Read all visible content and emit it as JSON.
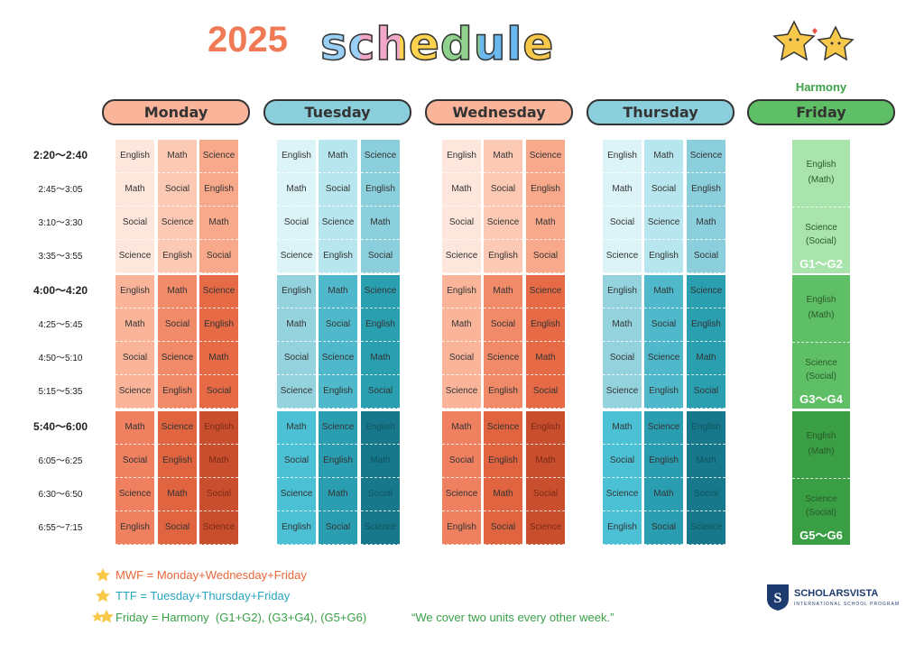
{
  "header": {
    "year": "2025",
    "title": "schedule",
    "subtitle": "Harmony"
  },
  "days": [
    "Monday",
    "Tuesday",
    "Wednesday",
    "Thursday",
    "Friday"
  ],
  "times": [
    "2:20～2:40",
    "2:45～3:05",
    "3:10～3:30",
    "3:35～3:55",
    "4:00～4:20",
    "4:25～5:45",
    "4:50～5:10",
    "5:15～5:35",
    "5:40～6:00",
    "6:05～6:25",
    "6:30～6:50",
    "6:55～7:15"
  ],
  "grids": [
    [
      [
        "English",
        "Math",
        "Science"
      ],
      [
        "Math",
        "Social",
        "English"
      ],
      [
        "Social",
        "Science",
        "Math"
      ],
      [
        "Science",
        "English",
        "Social"
      ],
      [
        "English",
        "Math",
        "Science"
      ],
      [
        "Math",
        "Social",
        "English"
      ],
      [
        "Social",
        "Science",
        "Math"
      ],
      [
        "Science",
        "English",
        "Social"
      ],
      [
        "Math",
        "Science",
        "English"
      ],
      [
        "Social",
        "English",
        "Math"
      ],
      [
        "Science",
        "Math",
        "Social"
      ],
      [
        "English",
        "Social",
        "Science"
      ]
    ],
    [
      [
        "English",
        "Math",
        "Science"
      ],
      [
        "Math",
        "Social",
        "English"
      ],
      [
        "Social",
        "Science",
        "Math"
      ],
      [
        "Science",
        "English",
        "Social"
      ],
      [
        "English",
        "Math",
        "Science"
      ],
      [
        "Math",
        "Social",
        "English"
      ],
      [
        "Social",
        "Science",
        "Math"
      ],
      [
        "Science",
        "English",
        "Social"
      ],
      [
        "Math",
        "Science",
        "English"
      ],
      [
        "Social",
        "English",
        "Math"
      ],
      [
        "Science",
        "Math",
        "Social"
      ],
      [
        "English",
        "Social",
        "Science"
      ]
    ],
    [
      [
        "English",
        "Math",
        "Science"
      ],
      [
        "Math",
        "Social",
        "English"
      ],
      [
        "Social",
        "Science",
        "Math"
      ],
      [
        "Science",
        "English",
        "Social"
      ],
      [
        "English",
        "Math",
        "Science"
      ],
      [
        "Math",
        "Social",
        "English"
      ],
      [
        "Social",
        "Science",
        "Math"
      ],
      [
        "Science",
        "English",
        "Social"
      ],
      [
        "Math",
        "Science",
        "English"
      ],
      [
        "Social",
        "English",
        "Math"
      ],
      [
        "Science",
        "Math",
        "Social"
      ],
      [
        "English",
        "Social",
        "Science"
      ]
    ],
    [
      [
        "English",
        "Math",
        "Science"
      ],
      [
        "Math",
        "Social",
        "English"
      ],
      [
        "Social",
        "Science",
        "Math"
      ],
      [
        "Science",
        "English",
        "Social"
      ],
      [
        "English",
        "Math",
        "Science"
      ],
      [
        "Math",
        "Social",
        "English"
      ],
      [
        "Social",
        "Science",
        "Math"
      ],
      [
        "Science",
        "English",
        "Social"
      ],
      [
        "Math",
        "Science",
        "English"
      ],
      [
        "Social",
        "English",
        "Math"
      ],
      [
        "Science",
        "Math",
        "Social"
      ],
      [
        "English",
        "Social",
        "Science"
      ]
    ]
  ],
  "friday": [
    {
      "top": "English",
      "top_alt": "(Math)",
      "bottom": "Science",
      "bottom_alt": "(Social)",
      "grades": "G1～G2"
    },
    {
      "top": "English",
      "top_alt": "(Math)",
      "bottom": "Science",
      "bottom_alt": "(Social)",
      "grades": "G3～G4"
    },
    {
      "top": "English",
      "top_alt": "(Math)",
      "bottom": "Science",
      "bottom_alt": "(Social)",
      "grades": "G5～G6"
    }
  ],
  "legend": [
    "MWF = Monday+Wednesday+Friday",
    "TTF = Tuesday+Thursday+Friday",
    "Friday = Harmony  (G1+G2), (G3+G4), (G5+G6)"
  ],
  "quote": "“We cover two units every other week.”",
  "logo": {
    "name": "SCHOLARSVISTA",
    "tagline": "INTERNATIONAL SCHOOL PROGRAM"
  }
}
